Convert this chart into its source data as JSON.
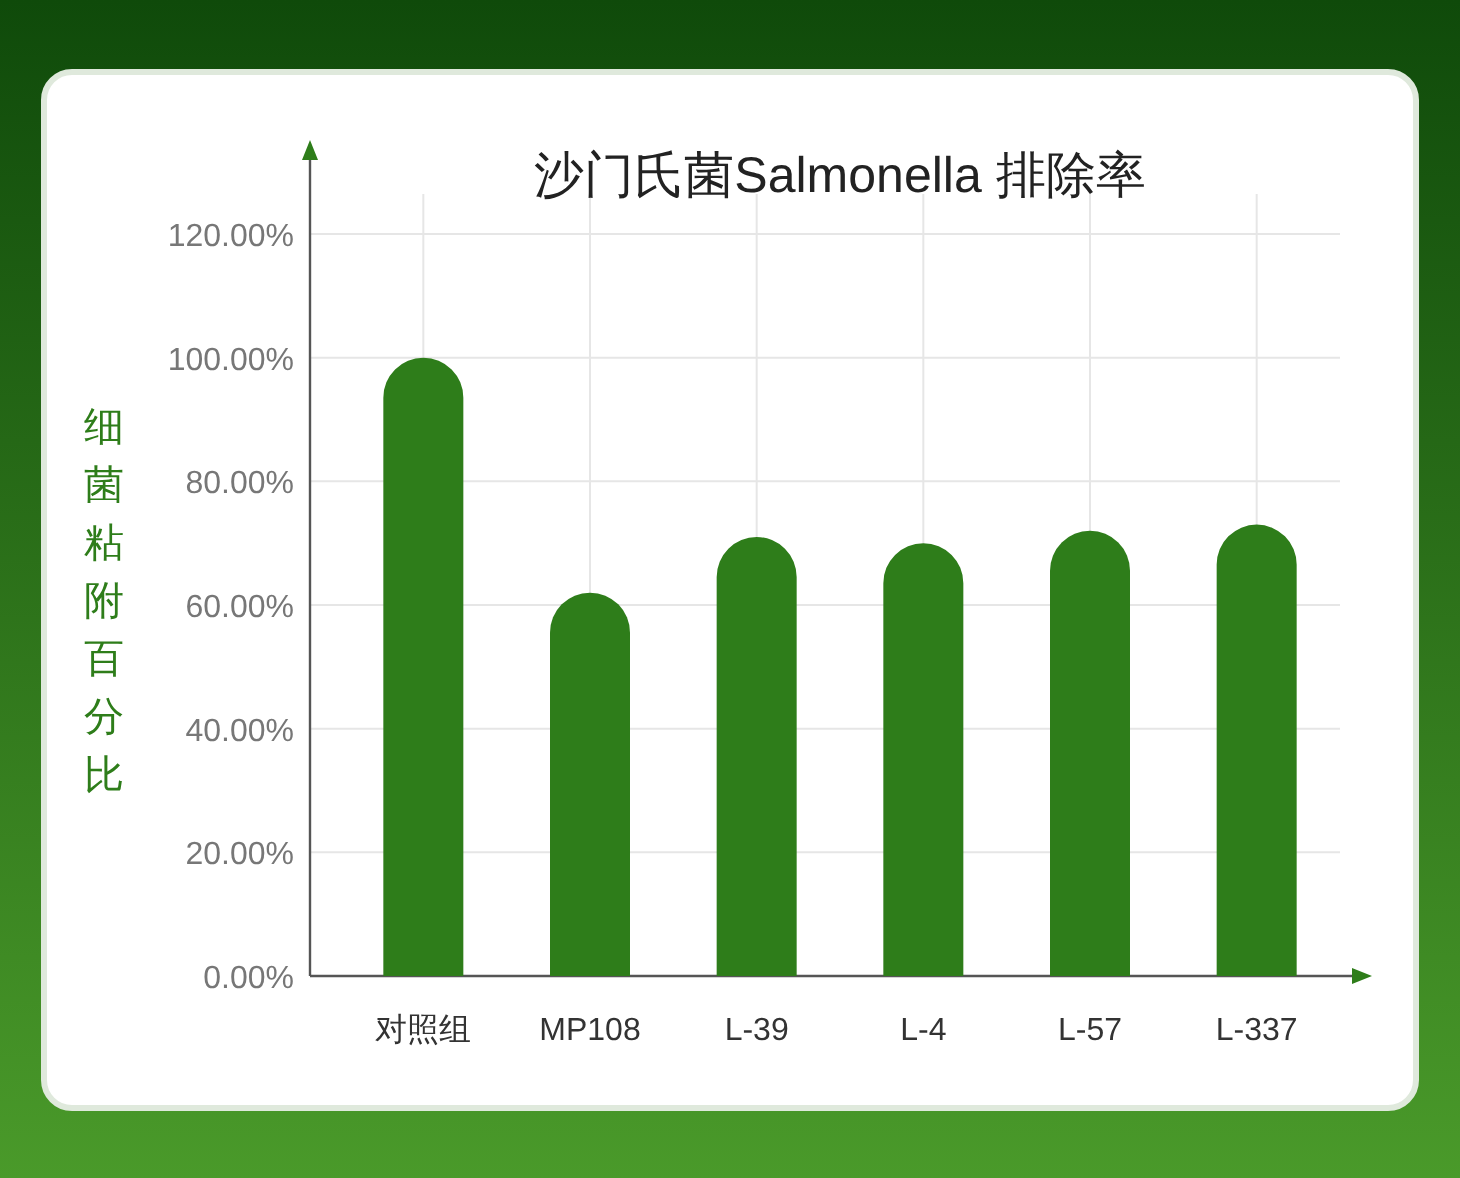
{
  "chart_data": {
    "type": "bar",
    "title": "沙门氏菌Salmonella 排除率",
    "ylabel": "细菌粘附百分比",
    "categories": [
      "对照组",
      "MP108",
      "L-39",
      "L-4",
      "L-57",
      "L-337"
    ],
    "values": [
      100,
      62,
      71,
      70,
      72,
      73
    ],
    "color": "#2e7d1a",
    "ylim": [
      0,
      120
    ],
    "yticks": [
      {
        "value": 0,
        "label": "0.00%"
      },
      {
        "value": 20,
        "label": "20.00%"
      },
      {
        "value": 40,
        "label": "40.00%"
      },
      {
        "value": 60,
        "label": "60.00%"
      },
      {
        "value": 80,
        "label": "80.00%"
      },
      {
        "value": 100,
        "label": "100.00%"
      },
      {
        "value": 120,
        "label": "120.00%"
      }
    ],
    "grid": true
  }
}
